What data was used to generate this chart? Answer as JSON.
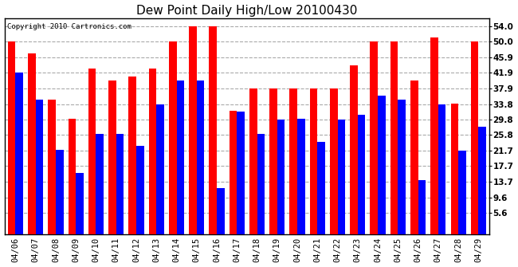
{
  "title": "Dew Point Daily High/Low 20100430",
  "copyright": "Copyright 2010 Cartronics.com",
  "dates": [
    "04/06",
    "04/07",
    "04/08",
    "04/09",
    "04/10",
    "04/11",
    "04/12",
    "04/13",
    "04/14",
    "04/15",
    "04/16",
    "04/17",
    "04/18",
    "04/19",
    "04/20",
    "04/21",
    "04/22",
    "04/23",
    "04/24",
    "04/25",
    "04/26",
    "04/27",
    "04/28",
    "04/29"
  ],
  "highs": [
    50.0,
    46.9,
    35.0,
    30.0,
    43.0,
    39.9,
    41.0,
    43.0,
    50.0,
    54.0,
    54.0,
    32.0,
    37.9,
    37.9,
    37.9,
    37.9,
    37.9,
    43.9,
    50.0,
    50.0,
    39.9,
    51.1,
    34.0,
    50.0
  ],
  "lows": [
    41.9,
    35.0,
    22.0,
    16.0,
    26.0,
    26.0,
    23.0,
    33.8,
    39.9,
    39.9,
    12.0,
    31.9,
    26.0,
    29.8,
    30.0,
    24.0,
    29.8,
    31.0,
    36.0,
    35.0,
    14.0,
    33.8,
    21.7,
    28.0
  ],
  "high_color": "#ff0000",
  "low_color": "#0000ff",
  "background_color": "#ffffff",
  "plot_bg_color": "#ffffff",
  "yticks": [
    5.6,
    9.6,
    13.7,
    17.7,
    21.7,
    25.8,
    29.8,
    33.8,
    37.9,
    41.9,
    45.9,
    50.0,
    54.0
  ],
  "ylim": [
    0,
    56.0
  ],
  "grid_color": "#aaaaaa",
  "bar_width": 0.38,
  "title_fontsize": 11,
  "tick_fontsize": 7.5,
  "copyright_fontsize": 6.5,
  "outer_border_color": "#000000"
}
